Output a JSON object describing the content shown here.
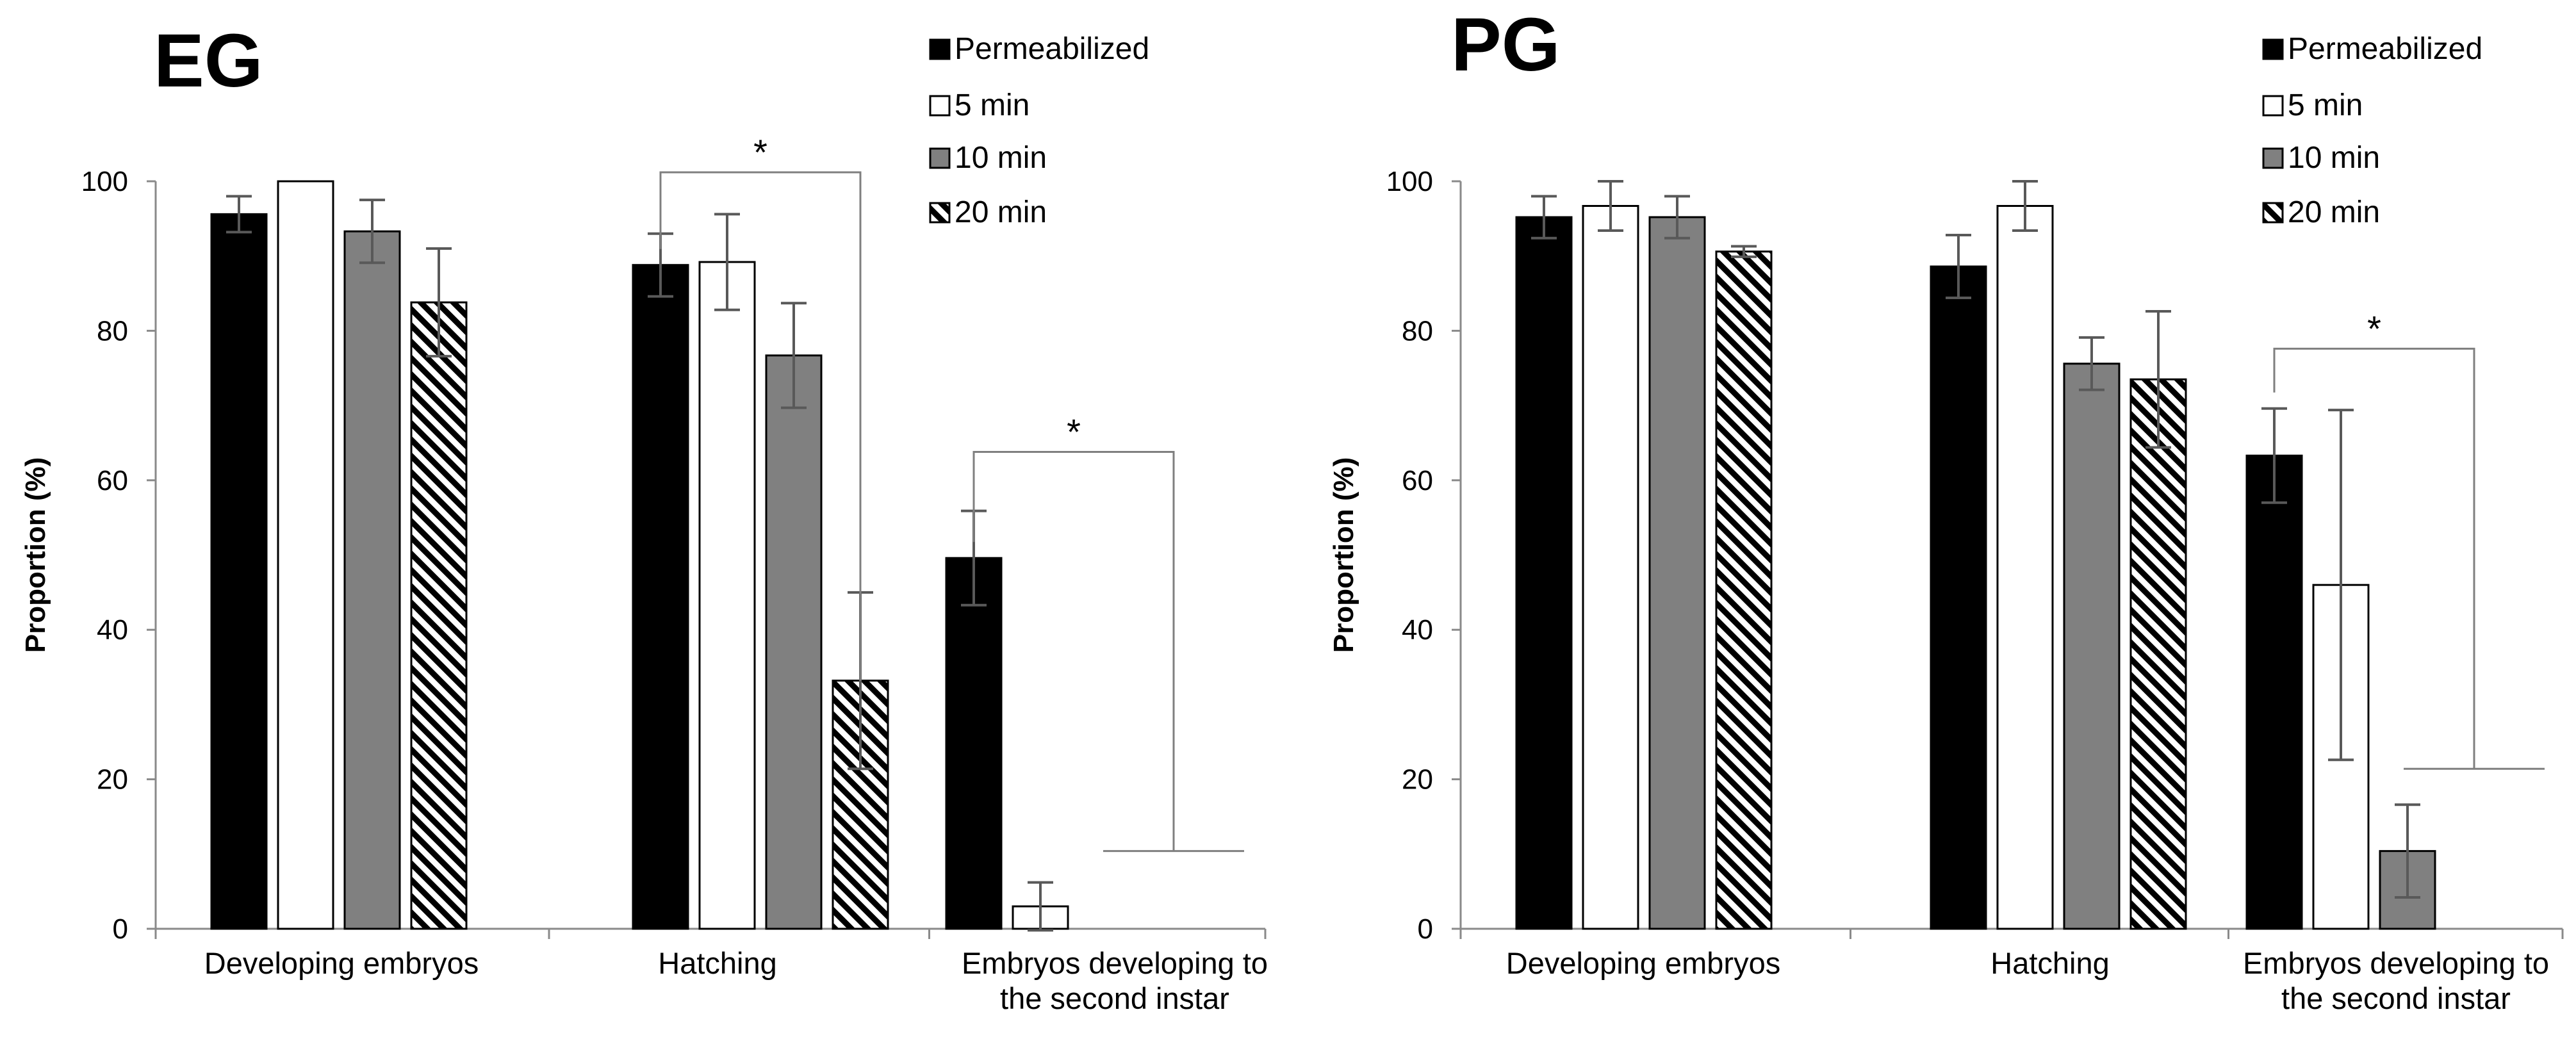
{
  "legend": [
    "Permeabilized",
    "5 min",
    "10 min",
    "20 min"
  ],
  "series_styles": [
    {
      "fill": "#000000",
      "pattern": "solid"
    },
    {
      "fill": "#ffffff",
      "pattern": "solid"
    },
    {
      "fill": "#808080",
      "pattern": "solid"
    },
    {
      "fill": "#000000",
      "pattern": "diagonal-hatch"
    }
  ],
  "chart_data": [
    {
      "type": "bar",
      "title": "EG",
      "ylabel": "Proportion (%)",
      "xlabel": "",
      "ylim": [
        0,
        100
      ],
      "yticks": [
        0,
        20,
        40,
        60,
        80,
        100
      ],
      "categories": [
        [
          "Developing embryos"
        ],
        [
          "Hatching"
        ],
        [
          "Embryos developing to",
          "the second instar"
        ]
      ],
      "series": [
        {
          "name": "Permeabilized",
          "values": [
            95.6,
            88.8,
            49.6
          ],
          "errors": [
            2.4,
            4.2,
            6.3
          ]
        },
        {
          "name": "5 min",
          "values": [
            100.0,
            89.2,
            3.0
          ],
          "errors": [
            0,
            6.4,
            3.2
          ]
        },
        {
          "name": "10 min",
          "values": [
            93.3,
            76.7,
            0
          ],
          "errors": [
            4.2,
            7.0,
            0
          ]
        },
        {
          "name": "20 min",
          "values": [
            83.8,
            33.2,
            0
          ],
          "errors": [
            7.2,
            11.8,
            0
          ]
        }
      ],
      "annotations": [
        {
          "text": "*",
          "from": {
            "category": 1,
            "series": 0,
            "value": 88.8
          },
          "to": {
            "category": 1,
            "series": 3,
            "value": 33.2
          },
          "bracket_y": 101.2
        },
        {
          "text": "*",
          "from": {
            "category": 2,
            "series": 0,
            "value": 49.6
          },
          "to": {
            "category": 2,
            "series": 3,
            "value": 10.4
          },
          "bracket_y": 63.8
        }
      ]
    },
    {
      "type": "bar",
      "title": "PG",
      "ylabel": "Proportion (%)",
      "xlabel": "",
      "ylim": [
        0,
        100
      ],
      "yticks": [
        0,
        20,
        40,
        60,
        80,
        100
      ],
      "categories": [
        [
          "Developing embryos"
        ],
        [
          "Hatching"
        ],
        [
          "Embryos developing to",
          "the second instar"
        ]
      ],
      "series": [
        {
          "name": "Permeabilized",
          "values": [
            95.2,
            88.6,
            63.3
          ],
          "errors": [
            2.8,
            4.2,
            6.3
          ]
        },
        {
          "name": "5 min",
          "values": [
            96.7,
            96.7,
            46.0
          ],
          "errors": [
            3.3,
            3.3,
            23.4
          ]
        },
        {
          "name": "10 min",
          "values": [
            95.2,
            75.6,
            10.4
          ],
          "errors": [
            2.8,
            3.5,
            6.2
          ]
        },
        {
          "name": "20 min",
          "values": [
            90.6,
            73.5,
            0
          ],
          "errors": [
            0.7,
            9.1,
            0
          ]
        }
      ],
      "annotations": [
        {
          "text": "*",
          "from": {
            "category": 2,
            "series": 0,
            "value": 69.6
          },
          "to": {
            "category": 2,
            "series": 3,
            "value": 21.4
          },
          "bracket_y": 77.6
        }
      ]
    }
  ]
}
